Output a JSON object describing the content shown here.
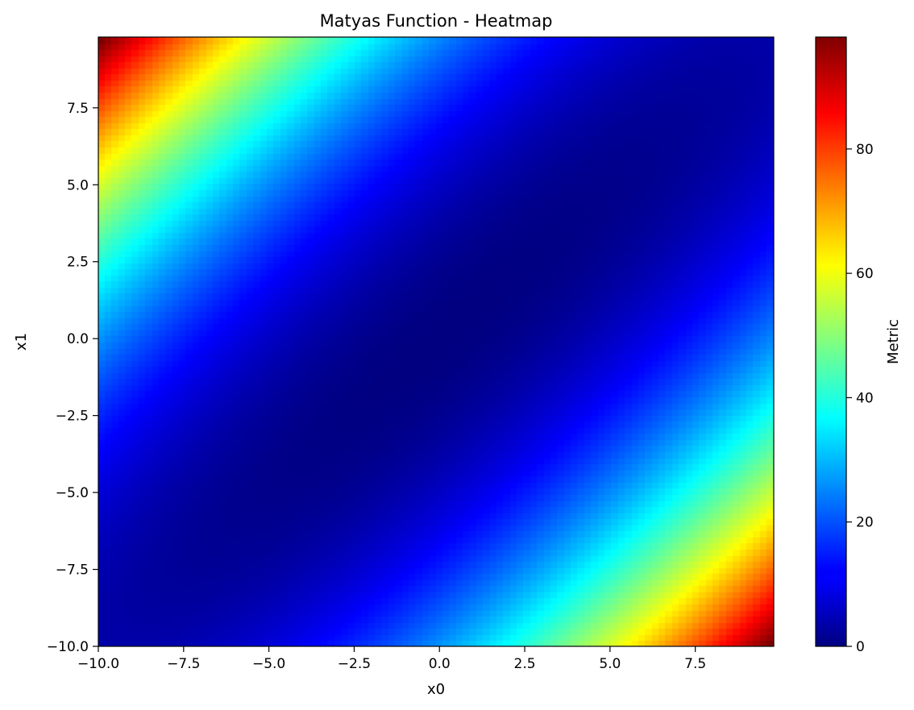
{
  "chart_data": {
    "type": "heatmap",
    "title": "Matyas Function - Heatmap",
    "xlabel": "x0",
    "ylabel": "x1",
    "colorbar_label": "Metric",
    "colormap": "jet",
    "function": "0.26*(x0^2 + x1^2) - 0.48*x0*x1",
    "x_range": [
      -10,
      9.8
    ],
    "y_range": [
      -10,
      9.8
    ],
    "grid_step": 0.2,
    "value_range": [
      0,
      98
    ],
    "x_ticks": [
      {
        "value": -10,
        "label": "−10.0"
      },
      {
        "value": -7.5,
        "label": "−7.5"
      },
      {
        "value": -5,
        "label": "−5.0"
      },
      {
        "value": -2.5,
        "label": "−2.5"
      },
      {
        "value": 0,
        "label": "0.0"
      },
      {
        "value": 2.5,
        "label": "2.5"
      },
      {
        "value": 5,
        "label": "5.0"
      },
      {
        "value": 7.5,
        "label": "7.5"
      }
    ],
    "y_ticks": [
      {
        "value": -10,
        "label": "−10.0"
      },
      {
        "value": -7.5,
        "label": "−7.5"
      },
      {
        "value": -5,
        "label": "−5.0"
      },
      {
        "value": -2.5,
        "label": "−2.5"
      },
      {
        "value": 0,
        "label": "0.0"
      },
      {
        "value": 2.5,
        "label": "2.5"
      },
      {
        "value": 5,
        "label": "5.0"
      },
      {
        "value": 7.5,
        "label": "7.5"
      }
    ],
    "colorbar_ticks": [
      {
        "value": 0,
        "label": "0"
      },
      {
        "value": 20,
        "label": "20"
      },
      {
        "value": 40,
        "label": "40"
      },
      {
        "value": 60,
        "label": "60"
      },
      {
        "value": 80,
        "label": "80"
      }
    ],
    "grid": false,
    "legend": "none"
  }
}
